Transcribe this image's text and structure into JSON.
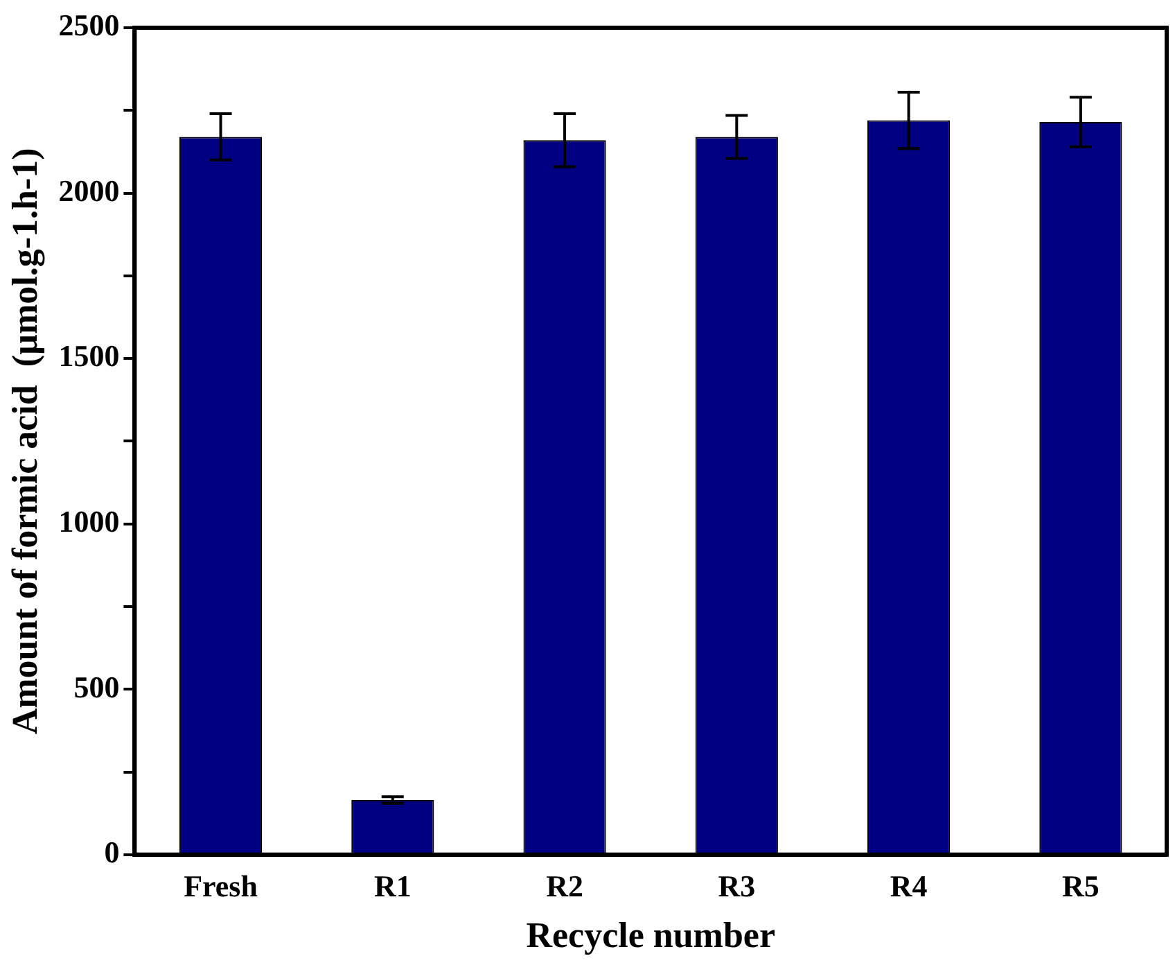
{
  "chart_data": {
    "type": "bar",
    "xlabel": "Recycle number",
    "ylabel": "Amount of formic acid  (µmol.g-1.h-1)",
    "categories": [
      "Fresh",
      "R1",
      "R2",
      "R3",
      "R4",
      "R5"
    ],
    "values": [
      2170,
      165,
      2160,
      2170,
      2220,
      2215
    ],
    "errors": [
      70,
      10,
      80,
      65,
      85,
      75
    ],
    "color": "#000080",
    "ylim": [
      0,
      2500
    ],
    "yticks": [
      0,
      {
        "value": 250,
        "label": null
      },
      500,
      {
        "value": 750,
        "label": null
      },
      1000,
      {
        "value": 1250,
        "label": null
      },
      1500,
      {
        "value": 1750,
        "label": null
      },
      2000,
      {
        "value": 2250,
        "label": null
      },
      2500
    ],
    "grid": false,
    "legend": false
  }
}
